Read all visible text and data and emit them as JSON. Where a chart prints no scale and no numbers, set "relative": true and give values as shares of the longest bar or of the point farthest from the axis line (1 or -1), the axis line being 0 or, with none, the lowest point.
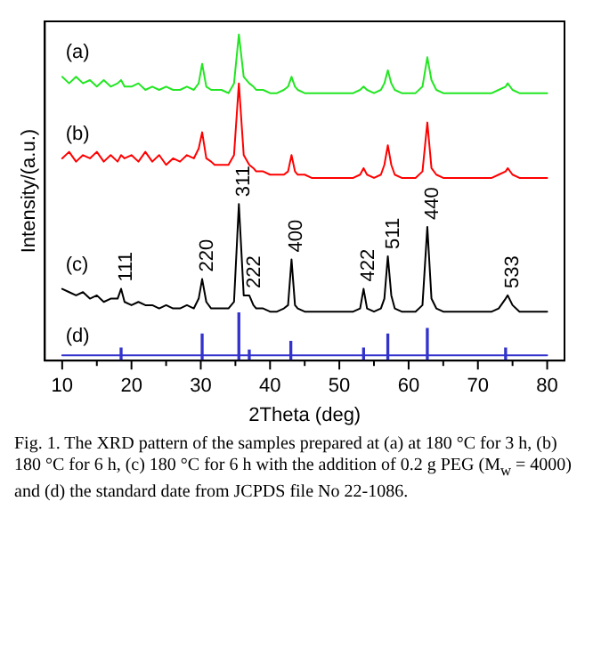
{
  "chart_data": {
    "type": "line",
    "xlabel": "2Theta (deg)",
    "ylabel": "Intensity/(a.u.)",
    "relative": true,
    "grid": false,
    "legend": false,
    "marker": "none",
    "line_style": "solid",
    "xlim": [
      10,
      80
    ],
    "xticks": [
      10,
      {
        "value": 15,
        "label": null
      },
      20,
      {
        "value": 25,
        "label": null
      },
      30,
      {
        "value": 35,
        "label": null
      },
      40,
      {
        "value": 45,
        "label": null
      },
      50,
      {
        "value": 55,
        "label": null
      },
      60,
      {
        "value": 65,
        "label": null
      },
      70,
      {
        "value": 75,
        "label": null
      },
      80
    ],
    "x": [
      10,
      11,
      12,
      13,
      14,
      15,
      16,
      17,
      18,
      18.5,
      19,
      20,
      21,
      22,
      23,
      24,
      25,
      26,
      27,
      28,
      29,
      29.7,
      30.2,
      30.8,
      31.5,
      32,
      33,
      34,
      34.8,
      35.5,
      36.2,
      37,
      37.6,
      38,
      39,
      40,
      41,
      42,
      42.6,
      43.1,
      43.6,
      44,
      45,
      46,
      47,
      48,
      49,
      50,
      51,
      52,
      53,
      53.5,
      54,
      55,
      56,
      56.5,
      57,
      57.5,
      58,
      59,
      60,
      61,
      62,
      62.7,
      63.3,
      64,
      65,
      66,
      67,
      68,
      69,
      70,
      71,
      72,
      73,
      74,
      74.3,
      75,
      76,
      77,
      78,
      79,
      80
    ],
    "series": [
      {
        "name": "(a)",
        "color": "#22e622",
        "values": [
          0.87,
          0.85,
          0.87,
          0.85,
          0.86,
          0.84,
          0.86,
          0.84,
          0.85,
          0.86,
          0.84,
          0.84,
          0.85,
          0.83,
          0.84,
          0.83,
          0.84,
          0.83,
          0.83,
          0.84,
          0.83,
          0.85,
          0.91,
          0.84,
          0.83,
          0.83,
          0.83,
          0.82,
          0.85,
          1.0,
          0.87,
          0.85,
          0.84,
          0.83,
          0.83,
          0.82,
          0.82,
          0.83,
          0.84,
          0.87,
          0.84,
          0.83,
          0.82,
          0.82,
          0.82,
          0.82,
          0.82,
          0.82,
          0.82,
          0.82,
          0.83,
          0.84,
          0.83,
          0.82,
          0.83,
          0.85,
          0.89,
          0.85,
          0.83,
          0.82,
          0.82,
          0.82,
          0.84,
          0.93,
          0.86,
          0.83,
          0.82,
          0.82,
          0.82,
          0.82,
          0.82,
          0.82,
          0.82,
          0.82,
          0.83,
          0.84,
          0.85,
          0.83,
          0.82,
          0.82,
          0.82,
          0.82,
          0.82
        ]
      },
      {
        "name": "(b)",
        "color": "#ff0000",
        "values": [
          0.62,
          0.64,
          0.61,
          0.63,
          0.62,
          0.64,
          0.61,
          0.63,
          0.61,
          0.63,
          0.62,
          0.63,
          0.61,
          0.64,
          0.61,
          0.63,
          0.6,
          0.62,
          0.61,
          0.63,
          0.62,
          0.65,
          0.7,
          0.62,
          0.61,
          0.6,
          0.6,
          0.6,
          0.63,
          0.85,
          0.63,
          0.6,
          0.59,
          0.58,
          0.58,
          0.57,
          0.57,
          0.57,
          0.58,
          0.63,
          0.58,
          0.57,
          0.57,
          0.56,
          0.56,
          0.56,
          0.56,
          0.56,
          0.56,
          0.56,
          0.57,
          0.59,
          0.57,
          0.56,
          0.57,
          0.6,
          0.66,
          0.6,
          0.57,
          0.56,
          0.56,
          0.56,
          0.58,
          0.73,
          0.59,
          0.57,
          0.56,
          0.56,
          0.56,
          0.56,
          0.56,
          0.56,
          0.56,
          0.56,
          0.57,
          0.58,
          0.59,
          0.57,
          0.56,
          0.56,
          0.56,
          0.56,
          0.56
        ]
      },
      {
        "name": "(c)",
        "color": "#000000",
        "values": [
          0.22,
          0.21,
          0.2,
          0.21,
          0.19,
          0.2,
          0.18,
          0.19,
          0.19,
          0.22,
          0.18,
          0.17,
          0.18,
          0.17,
          0.17,
          0.16,
          0.17,
          0.16,
          0.16,
          0.17,
          0.16,
          0.19,
          0.25,
          0.18,
          0.16,
          0.16,
          0.16,
          0.16,
          0.18,
          0.48,
          0.2,
          0.2,
          0.17,
          0.16,
          0.16,
          0.15,
          0.15,
          0.16,
          0.17,
          0.31,
          0.17,
          0.16,
          0.15,
          0.15,
          0.15,
          0.15,
          0.15,
          0.15,
          0.15,
          0.15,
          0.16,
          0.22,
          0.16,
          0.15,
          0.16,
          0.19,
          0.32,
          0.2,
          0.16,
          0.15,
          0.15,
          0.15,
          0.17,
          0.41,
          0.19,
          0.16,
          0.15,
          0.15,
          0.15,
          0.15,
          0.15,
          0.15,
          0.15,
          0.15,
          0.16,
          0.19,
          0.2,
          0.17,
          0.15,
          0.15,
          0.15,
          0.15,
          0.15
        ]
      },
      {
        "name": "(d)",
        "type": "bar",
        "color": "#3333cc",
        "x": [
          18.5,
          30.2,
          35.5,
          37,
          43,
          53.5,
          57,
          62.7,
          74
        ],
        "values": [
          0.038,
          0.081,
          0.146,
          0.032,
          0.059,
          0.038,
          0.081,
          0.098,
          0.038
        ]
      },
      {
        "type": "line",
        "color": "#3333cc",
        "x": [
          10,
          80
        ],
        "values": [
          0.016,
          0.016
        ]
      }
    ],
    "annotations": [
      {
        "text": "111",
        "x": 18.5,
        "y": 0.22
      },
      {
        "text": "220",
        "x": 30.2,
        "y": 0.25
      },
      {
        "text": "311",
        "x": 35.5,
        "y": 0.48
      },
      {
        "text": "222",
        "x": 37,
        "y": 0.2
      },
      {
        "text": "400",
        "x": 43.1,
        "y": 0.31
      },
      {
        "text": "422",
        "x": 53.5,
        "y": 0.22
      },
      {
        "text": "511",
        "x": 57,
        "y": 0.32
      },
      {
        "text": "440",
        "x": 62.7,
        "y": 0.41
      },
      {
        "text": "533",
        "x": 74.3,
        "y": 0.2
      },
      "Fig. 1. The XRD pattern of the samples prepared at (a) at 180 °C for 3 h, (b) 180 °C for 6 h, (c) 180 °C for 6 h with the addition of 0.2 g PEG (M$_{w}$ = 4000) and (d) the standard date from JCPDS file No 22-1086."
    ]
  }
}
